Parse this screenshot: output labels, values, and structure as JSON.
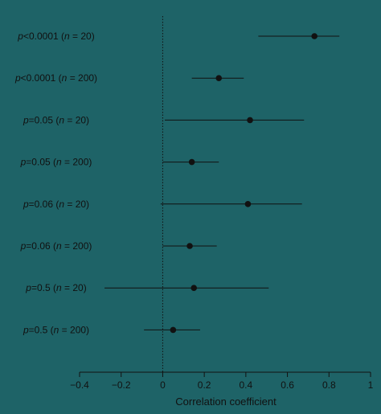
{
  "chart_data": {
    "type": "forest",
    "xlabel": "Correlation coefficient",
    "xlim": [
      -0.4,
      1.0
    ],
    "xticks": [
      -0.4,
      -0.2,
      0,
      0.2,
      0.4,
      0.6,
      0.8,
      1
    ],
    "xtick_labels": [
      "−0.4",
      "−0.2",
      "0",
      "0.2",
      "0.4",
      "0.6",
      "0.8",
      "1"
    ],
    "reference_line": 0,
    "rows": [
      {
        "p": "p",
        "p_rest": "<0.0001 (",
        "n": "n",
        "n_rest": " = 20)",
        "estimate": 0.73,
        "lower": 0.46,
        "upper": 0.85
      },
      {
        "p": "p",
        "p_rest": "<0.0001 (",
        "n": "n",
        "n_rest": " = 200)",
        "estimate": 0.27,
        "lower": 0.14,
        "upper": 0.39
      },
      {
        "p": "p",
        "p_rest": "=0.05 (",
        "n": "n",
        "n_rest": " = 20)",
        "estimate": 0.42,
        "lower": 0.01,
        "upper": 0.68
      },
      {
        "p": "p",
        "p_rest": "=0.05 (",
        "n": "n",
        "n_rest": " = 200)",
        "estimate": 0.14,
        "lower": 0.0,
        "upper": 0.27
      },
      {
        "p": "p",
        "p_rest": "=0.06 (",
        "n": "n",
        "n_rest": " = 20)",
        "estimate": 0.41,
        "lower": -0.01,
        "upper": 0.67
      },
      {
        "p": "p",
        "p_rest": "=0.06 (",
        "n": "n",
        "n_rest": " = 200)",
        "estimate": 0.13,
        "lower": 0.0,
        "upper": 0.26
      },
      {
        "p": "p",
        "p_rest": "=0.5 (",
        "n": "n",
        "n_rest": " = 20)",
        "estimate": 0.15,
        "lower": -0.28,
        "upper": 0.51
      },
      {
        "p": "p",
        "p_rest": "=0.5 (",
        "n": "n",
        "n_rest": " = 200)",
        "estimate": 0.05,
        "lower": -0.09,
        "upper": 0.18
      }
    ],
    "colors": {
      "background": "#1e6367",
      "ink": "#111111"
    }
  }
}
